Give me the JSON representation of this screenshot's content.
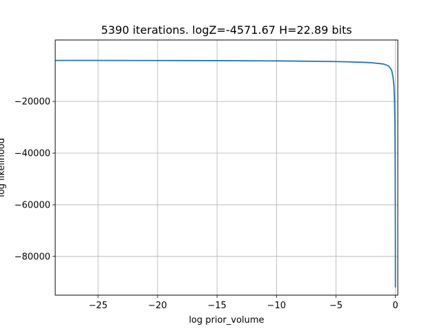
{
  "chart_data": {
    "type": "line",
    "title": "5390 iterations. logZ=-4571.67 H=22.89 bits",
    "xlabel": "log prior_volume",
    "ylabel": "log likelihood",
    "xlim": [
      -28.6,
      0.2
    ],
    "ylim": [
      -95000,
      3800
    ],
    "grid": true,
    "xticks": [
      -25,
      -20,
      -15,
      -10,
      -5,
      0
    ],
    "xtick_labels": [
      "−25",
      "−20",
      "−15",
      "−10",
      "−5",
      "0"
    ],
    "yticks": [
      -20000,
      -40000,
      -60000,
      -80000
    ],
    "ytick_labels": [
      "−20000",
      "−40000",
      "−60000",
      "−80000"
    ],
    "series": [
      {
        "color": "#1f77b4",
        "x": [
          -28.6,
          -25,
          -20,
          -15,
          -10,
          -5,
          -3,
          -2,
          -1,
          -0.6,
          -0.4,
          -0.3,
          -0.2,
          -0.12,
          -0.07,
          -0.04,
          -0.02,
          -0.008,
          0
        ],
        "y": [
          -4100,
          -4120,
          -4150,
          -4200,
          -4300,
          -4550,
          -4800,
          -5000,
          -5500,
          -6200,
          -7200,
          -8200,
          -10500,
          -14000,
          -20000,
          -30000,
          -45000,
          -65000,
          -92000
        ]
      }
    ]
  }
}
